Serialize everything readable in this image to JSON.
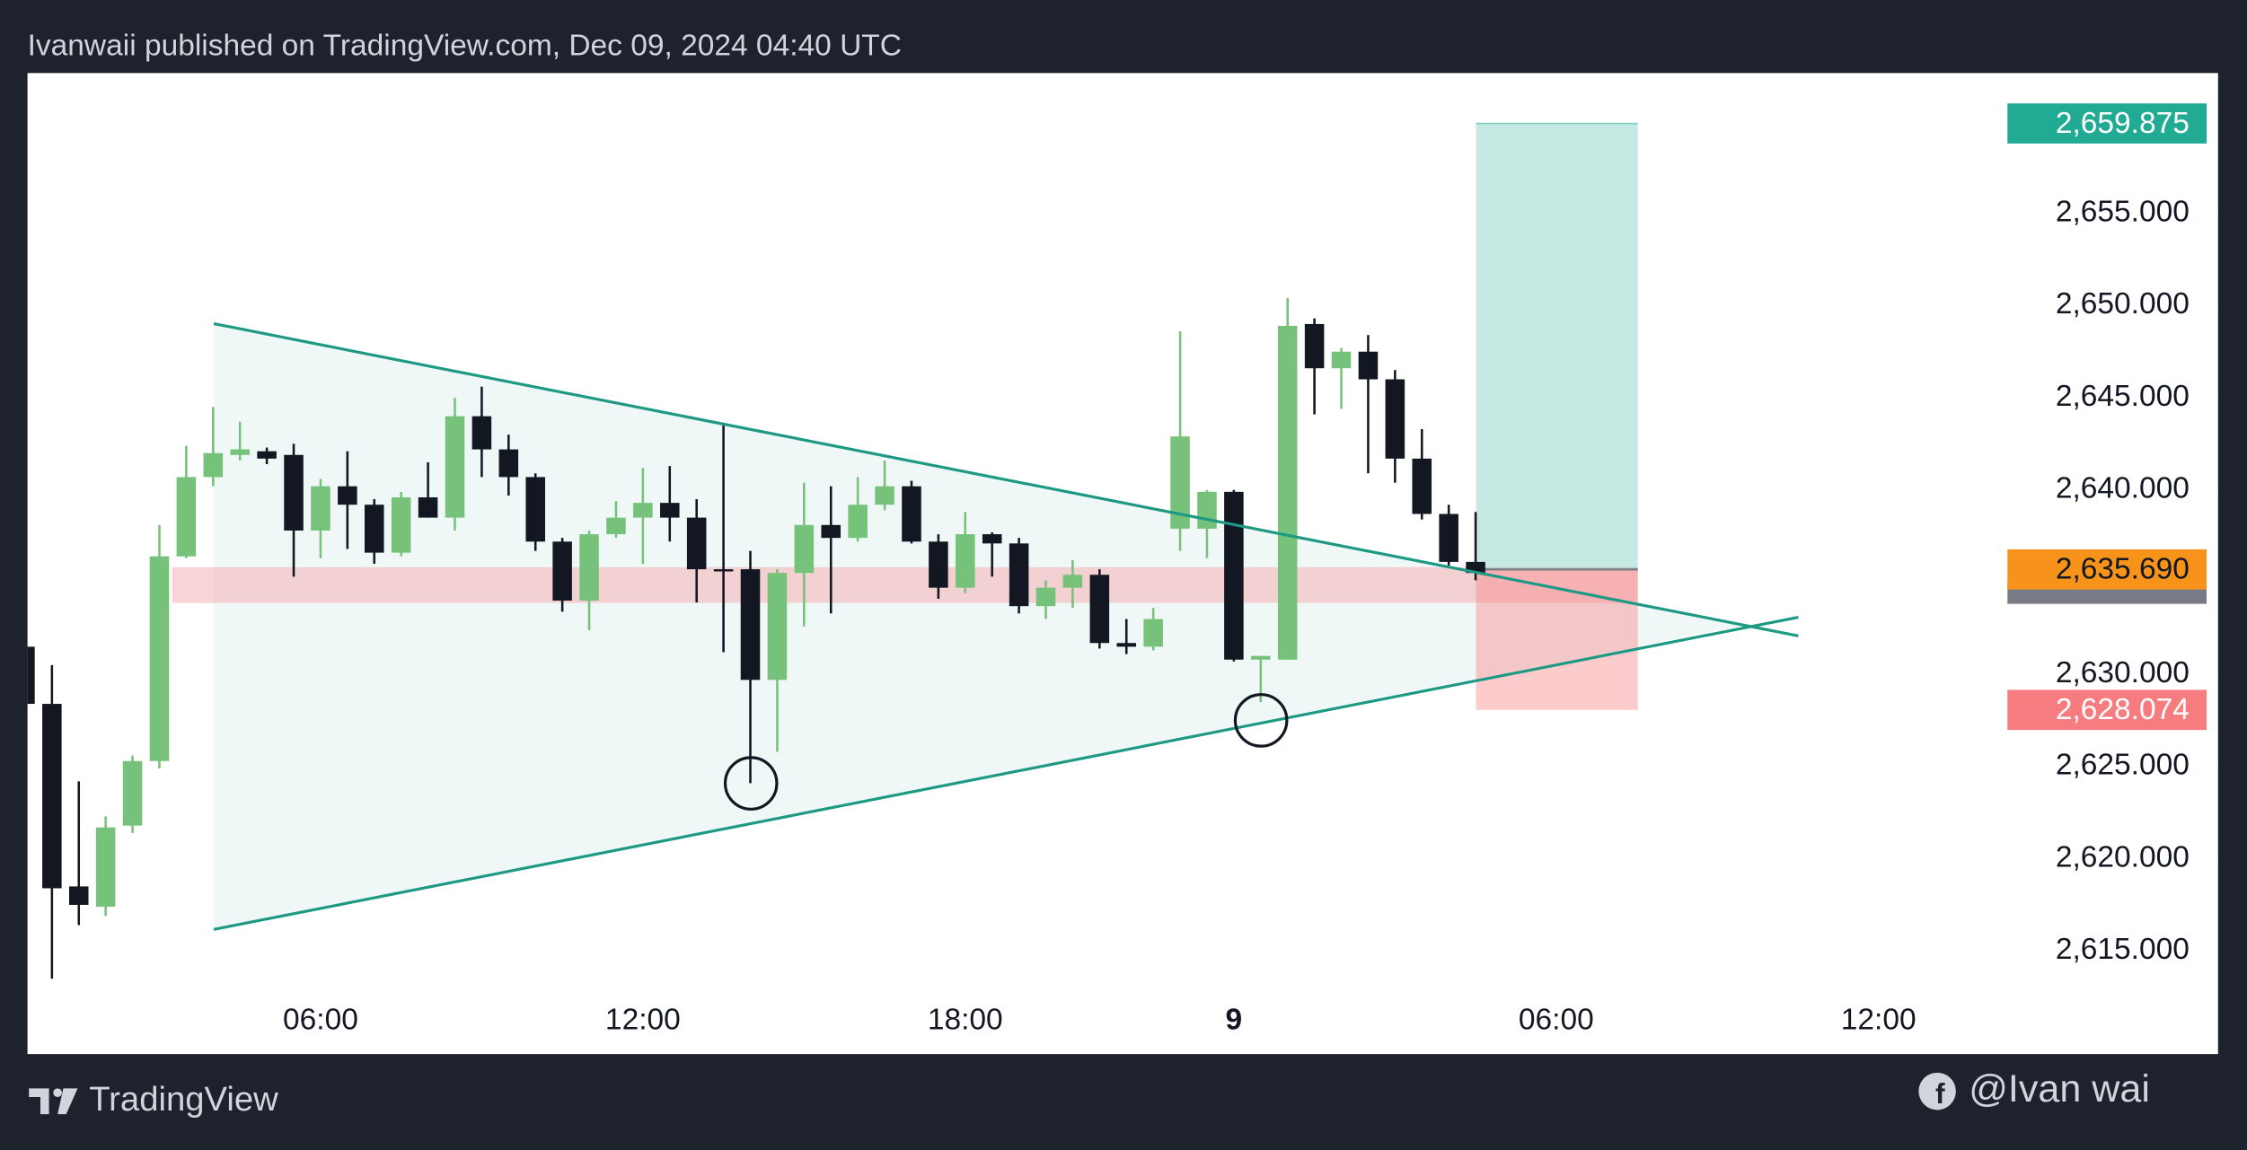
{
  "header": {
    "text": "Ivanwaii published on TradingView.com, Dec 09, 2024 04:40 UTC"
  },
  "footer": {
    "brand": "TradingView",
    "author": "@Ivan wai"
  },
  "chart_data": {
    "type": "candlestick",
    "up_color": "#76c27a",
    "down_color": "#131722",
    "open": [
      2631.5,
      2628.4,
      2618.5,
      2617.4,
      2621.8,
      2625.3,
      2636.4,
      2640.7,
      2641.9,
      2642.1,
      2641.9,
      2637.8,
      2640.2,
      2639.2,
      2636.6,
      2639.6,
      2638.5,
      2644.0,
      2642.2,
      2640.7,
      2637.2,
      2634.0,
      2637.6,
      2638.5,
      2639.3,
      2638.5,
      2635.7,
      2635.7,
      2629.7,
      2635.5,
      2638.1,
      2637.4,
      2639.2,
      2640.2,
      2637.2,
      2634.7,
      2637.6,
      2637.1,
      2633.7,
      2634.7,
      2635.4,
      2631.7,
      2631.5,
      2637.9,
      2637.9,
      2639.9,
      2630.8,
      2630.8,
      2649.0,
      2646.6,
      2647.5,
      2646.0,
      2641.7,
      2638.7,
      2636.1
    ],
    "high": [
      2632.5,
      2630.5,
      2624.2,
      2622.3,
      2625.6,
      2638.1,
      2642.4,
      2644.5,
      2643.7,
      2642.3,
      2642.5,
      2640.6,
      2642.1,
      2639.5,
      2639.9,
      2641.5,
      2645.0,
      2645.6,
      2643.0,
      2640.9,
      2637.4,
      2637.8,
      2639.4,
      2641.2,
      2641.3,
      2639.5,
      2643.5,
      2636.7,
      2635.7,
      2640.4,
      2640.2,
      2640.7,
      2641.6,
      2640.5,
      2637.6,
      2638.8,
      2637.7,
      2637.4,
      2635.1,
      2636.2,
      2635.7,
      2633.0,
      2633.6,
      2648.6,
      2640.0,
      2640.0,
      2631.0,
      2650.4,
      2649.3,
      2647.7,
      2648.4,
      2646.5,
      2643.3,
      2639.2,
      2638.8
    ],
    "low": [
      2628.0,
      2613.5,
      2616.4,
      2616.9,
      2621.4,
      2624.9,
      2636.3,
      2640.2,
      2641.6,
      2641.4,
      2635.3,
      2636.3,
      2636.8,
      2636.0,
      2636.4,
      2638.5,
      2637.8,
      2640.7,
      2639.7,
      2636.7,
      2633.4,
      2632.4,
      2637.4,
      2636.0,
      2637.2,
      2633.9,
      2631.2,
      2624.1,
      2625.8,
      2632.6,
      2633.3,
      2637.2,
      2638.9,
      2637.1,
      2634.1,
      2634.4,
      2635.3,
      2633.3,
      2633.0,
      2633.6,
      2631.4,
      2631.1,
      2631.3,
      2636.7,
      2636.3,
      2630.7,
      2628.5,
      2630.8,
      2644.1,
      2644.4,
      2640.9,
      2640.4,
      2638.4,
      2635.9,
      2635.1
    ],
    "close": [
      2628.4,
      2618.4,
      2617.5,
      2621.7,
      2625.3,
      2636.4,
      2640.7,
      2642.0,
      2642.2,
      2641.7,
      2637.8,
      2640.2,
      2639.2,
      2636.6,
      2639.6,
      2638.5,
      2644.0,
      2642.2,
      2640.7,
      2637.2,
      2634.0,
      2637.6,
      2638.5,
      2639.3,
      2638.5,
      2635.7,
      2635.6,
      2629.7,
      2635.5,
      2638.1,
      2637.4,
      2639.2,
      2640.2,
      2637.2,
      2634.7,
      2637.6,
      2637.1,
      2633.7,
      2634.7,
      2635.4,
      2631.7,
      2631.5,
      2633.0,
      2642.9,
      2639.9,
      2630.8,
      2631.0,
      2648.9,
      2646.6,
      2647.5,
      2646.0,
      2641.7,
      2638.7,
      2636.1,
      2635.5
    ],
    "xlim": [
      0.09,
      81.64
    ],
    "xticks": [
      {
        "value": 11,
        "label": "06:00"
      },
      {
        "value": 23,
        "label": "12:00"
      },
      {
        "value": 35,
        "label": "18:00"
      },
      {
        "value": 45,
        "label": "9"
      },
      {
        "value": 57,
        "label": "06:00"
      },
      {
        "value": 69,
        "label": "12:00"
      }
    ],
    "ylim": [
      2609.41,
      2662.61
    ],
    "yticks": [
      {
        "value": 2615,
        "label": "2,615.000"
      },
      {
        "value": 2620,
        "label": "2,620.000"
      },
      {
        "value": 2625,
        "label": "2,625.000"
      },
      {
        "value": 2630,
        "label": "2,630.000"
      },
      {
        "value": 2640,
        "label": "2,640.000"
      },
      {
        "value": 2645,
        "label": "2,645.000"
      },
      {
        "value": 2650,
        "label": "2,650.000"
      },
      {
        "value": 2655,
        "label": "2,655.000"
      }
    ],
    "position": {
      "target": {
        "value": 2659.875,
        "label": "2,659.875",
        "color": "#22ab94"
      },
      "entry": {
        "value": 2635.69,
        "label": "2,635.690",
        "color": "#f7931a"
      },
      "stop": {
        "value": 2628.074,
        "label": "2,628.074",
        "color": "#f77c80"
      }
    }
  }
}
